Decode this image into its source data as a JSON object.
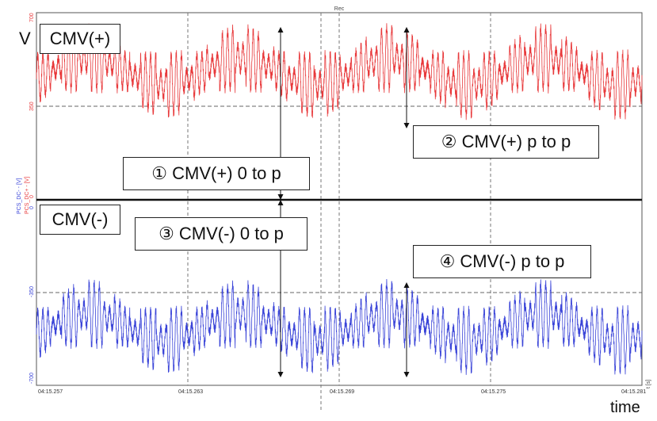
{
  "window": {
    "title": "Rec"
  },
  "axis_labels": {
    "y_unit": "V",
    "x_unit": "time",
    "ch_pos": "PCS_DC+ - [V]",
    "ch_neg": "PCS_DC- - [V]",
    "x_unit_small": "t [s]"
  },
  "callouts": {
    "cmv_pos_label": "CMV(+)",
    "cmv_neg_label": "CMV(-)",
    "c1": "① CMV(+) 0 to p",
    "c2": "② CMV(+) p to p",
    "c3": "③ CMV(-) 0 to p",
    "c4": "④ CMV(-) p to p"
  },
  "chart_data": [
    {
      "type": "line",
      "name": "CMV(+)",
      "ylabel": "PCS_DC+ - [V]",
      "yticks": [
        "700",
        "350",
        "0"
      ],
      "ylim": [
        0,
        700
      ],
      "xlim": [
        0,
        24
      ],
      "xticks": [
        "04:15.257",
        "04:15.263",
        "04:15.269",
        "04:15.275",
        "04:15.281"
      ],
      "color": "#e8393b",
      "center": 480,
      "low_envelope_amp": 50,
      "ripple_amp": 115,
      "envelope_periods": 4,
      "ripple_cycles": 118
    },
    {
      "type": "line",
      "name": "CMV(-)",
      "ylabel": "PCS_DC- - [V]",
      "yticks": [
        "0",
        "-350",
        "-700"
      ],
      "ylim": [
        -700,
        0
      ],
      "xlim": [
        0,
        24
      ],
      "xticks": [
        "04:15.257",
        "04:15.263",
        "04:15.269",
        "04:15.275",
        "04:15.281"
      ],
      "color": "#3a44d8",
      "center": -480,
      "low_envelope_amp": 50,
      "ripple_amp": 115,
      "envelope_periods": 4,
      "ripple_cycles": 118
    }
  ]
}
